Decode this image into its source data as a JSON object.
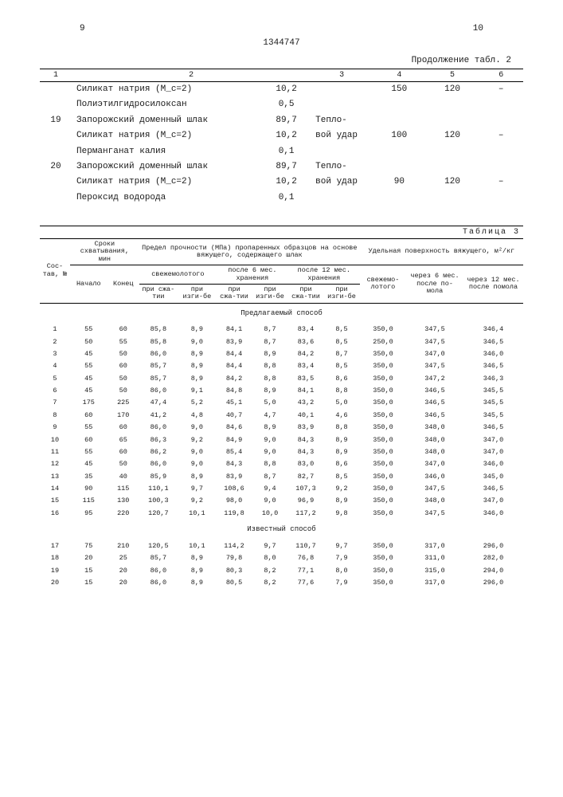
{
  "page_left": "9",
  "page_right": "10",
  "doc_number": "1344747",
  "table2": {
    "continuation": "Продолжение табл. 2",
    "headers": [
      "1",
      "2",
      "3",
      "4",
      "5",
      "6"
    ],
    "rows": [
      {
        "c1": "",
        "c2": "Силикат натрия (M_c=2)",
        "c3": "10,2",
        "c4": "",
        "c5": "150",
        "c6": "120",
        "c7": "–"
      },
      {
        "c1": "",
        "c2": "Полиэтилгидросилоксан",
        "c3": "0,5",
        "c4": "",
        "c5": "",
        "c6": "",
        "c7": ""
      },
      {
        "c1": "19",
        "c2": "Запорожский доменный шлак",
        "c3": "89,7",
        "c4": "Тепло-",
        "c5": "",
        "c6": "",
        "c7": ""
      },
      {
        "c1": "",
        "c2": "Силикат натрия (M_c=2)",
        "c3": "10,2",
        "c4": "вой удар",
        "c5": "100",
        "c6": "120",
        "c7": "–"
      },
      {
        "c1": "",
        "c2": "Перманганат калия",
        "c3": "0,1",
        "c4": "",
        "c5": "",
        "c6": "",
        "c7": ""
      },
      {
        "c1": "20",
        "c2": "Запорожский доменный шлак",
        "c3": "89,7",
        "c4": "Тепло-",
        "c5": "",
        "c6": "",
        "c7": ""
      },
      {
        "c1": "",
        "c2": "Силикат натрия (M_c=2)",
        "c3": "10,2",
        "c4": "вой удар",
        "c5": "90",
        "c6": "120",
        "c7": "–"
      },
      {
        "c1": "",
        "c2": "Пероксид водорода",
        "c3": "0,1",
        "c4": "",
        "c5": "",
        "c6": "",
        "c7": ""
      }
    ]
  },
  "table3": {
    "label": "Таблица 3",
    "head": {
      "c1": "Сос-тав, №",
      "c2": "Сроки схватывания, мин",
      "c2a": "Начало",
      "c2b": "Конец",
      "c3": "Предел прочности (МПа) пропаренных образцов на основе вяжущего, содержащего шлак",
      "c3a": "свежемолотого",
      "c3b": "после 6 мес. хранения",
      "c3c": "после 12 мес. хранения",
      "sub_sja": "при сжа-тии",
      "sub_izg": "при изги-бе",
      "c4": "Удельная поверхность вяжущего, м²/кг",
      "c4a": "свежемо-лотого",
      "c4b": "через 6 мес. после по-мола",
      "c4c": "через 12 мес. после помола"
    },
    "section1": "Предлагаемый способ",
    "rows1": [
      [
        "1",
        "55",
        "60",
        "85,8",
        "8,9",
        "84,1",
        "8,7",
        "83,4",
        "8,5",
        "350,0",
        "347,5",
        "346,4"
      ],
      [
        "2",
        "50",
        "55",
        "85,8",
        "9,0",
        "83,9",
        "8,7",
        "83,6",
        "8,5",
        "250,0",
        "347,5",
        "346,5"
      ],
      [
        "3",
        "45",
        "50",
        "86,0",
        "8,9",
        "84,4",
        "8,9",
        "84,2",
        "8,7",
        "350,0",
        "347,0",
        "346,0"
      ],
      [
        "4",
        "55",
        "60",
        "85,7",
        "8,9",
        "84,4",
        "8,8",
        "83,4",
        "8,5",
        "350,0",
        "347,5",
        "346,5"
      ],
      [
        "5",
        "45",
        "50",
        "85,7",
        "8,9",
        "84,2",
        "8,8",
        "83,5",
        "8,6",
        "350,0",
        "347,2",
        "346,3"
      ],
      [
        "6",
        "45",
        "50",
        "86,0",
        "9,1",
        "84,8",
        "8,9",
        "84,1",
        "8,8",
        "350,0",
        "346,5",
        "345,5"
      ],
      [
        "7",
        "175",
        "225",
        "47,4",
        "5,2",
        "45,1",
        "5,0",
        "43,2",
        "5,0",
        "350,0",
        "346,5",
        "345,5"
      ],
      [
        "8",
        "60",
        "170",
        "41,2",
        "4,8",
        "40,7",
        "4,7",
        "40,1",
        "4,6",
        "350,0",
        "346,5",
        "345,5"
      ],
      [
        "9",
        "55",
        "60",
        "86,0",
        "9,0",
        "84,6",
        "8,9",
        "83,9",
        "8,8",
        "350,0",
        "348,0",
        "346,5"
      ],
      [
        "10",
        "60",
        "65",
        "86,3",
        "9,2",
        "84,9",
        "9,0",
        "84,3",
        "8,9",
        "350,0",
        "348,0",
        "347,0"
      ],
      [
        "11",
        "55",
        "60",
        "86,2",
        "9,0",
        "85,4",
        "9,0",
        "84,3",
        "8,9",
        "350,0",
        "348,0",
        "347,0"
      ],
      [
        "12",
        "45",
        "50",
        "86,0",
        "9,0",
        "84,3",
        "8,8",
        "83,0",
        "8,6",
        "350,0",
        "347,0",
        "346,0"
      ],
      [
        "13",
        "35",
        "40",
        "85,9",
        "8,9",
        "83,9",
        "8,7",
        "82,7",
        "8,5",
        "350,0",
        "346,0",
        "345,0"
      ],
      [
        "14",
        "90",
        "115",
        "110,1",
        "9,7",
        "108,6",
        "9,4",
        "107,3",
        "9,2",
        "350,0",
        "347,5",
        "346,5"
      ],
      [
        "15",
        "115",
        "130",
        "100,3",
        "9,2",
        "98,0",
        "9,0",
        "96,9",
        "8,9",
        "350,0",
        "348,0",
        "347,0"
      ],
      [
        "16",
        "95",
        "220",
        "120,7",
        "10,1",
        "119,8",
        "10,0",
        "117,2",
        "9,8",
        "350,0",
        "347,5",
        "346,0"
      ]
    ],
    "section2": "Известный способ",
    "rows2": [
      [
        "17",
        "75",
        "210",
        "120,5",
        "10,1",
        "114,2",
        "9,7",
        "110,7",
        "9,7",
        "350,0",
        "317,0",
        "296,0"
      ],
      [
        "18",
        "20",
        "25",
        "85,7",
        "8,9",
        "79,8",
        "8,0",
        "76,8",
        "7,9",
        "350,0",
        "311,0",
        "282,0"
      ],
      [
        "19",
        "15",
        "20",
        "86,0",
        "8,9",
        "80,3",
        "8,2",
        "77,1",
        "8,0",
        "350,0",
        "315,0",
        "294,0"
      ],
      [
        "20",
        "15",
        "20",
        "86,0",
        "8,9",
        "80,5",
        "8,2",
        "77,6",
        "7,9",
        "350,0",
        "317,0",
        "296,0"
      ]
    ]
  }
}
